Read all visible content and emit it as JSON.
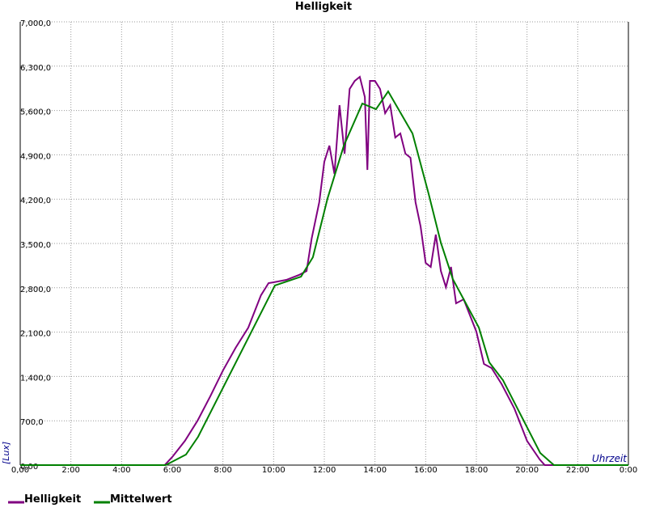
{
  "chart_data": {
    "type": "line",
    "title": "Helligkeit",
    "x_label": "Uhrzeit",
    "y_label": "[Lux]",
    "xlim": [
      0,
      24
    ],
    "ylim": [
      0,
      7000
    ],
    "xticks": [
      {
        "value": 0,
        "label": "0,00"
      },
      {
        "value": 2,
        "label": "2:00"
      },
      {
        "value": 4,
        "label": "4:00"
      },
      {
        "value": 6,
        "label": "6:00"
      },
      {
        "value": 8,
        "label": "8:00"
      },
      {
        "value": 10,
        "label": "10:00"
      },
      {
        "value": 12,
        "label": "12:00"
      },
      {
        "value": 14,
        "label": "14:00"
      },
      {
        "value": 16,
        "label": "16:00"
      },
      {
        "value": 18,
        "label": "18:00"
      },
      {
        "value": 20,
        "label": "20:00"
      },
      {
        "value": 22,
        "label": "22:00"
      },
      {
        "value": 24,
        "label": "0:00"
      }
    ],
    "yticks": [
      {
        "value": 0,
        "label": "0,00"
      },
      {
        "value": 700,
        "label": "700,0"
      },
      {
        "value": 1400,
        "label": "1,400,0"
      },
      {
        "value": 2100,
        "label": "2,100,0"
      },
      {
        "value": 2800,
        "label": "2,800,0"
      },
      {
        "value": 3500,
        "label": "3,500,0"
      },
      {
        "value": 4200,
        "label": "4,200,0"
      },
      {
        "value": 4900,
        "label": "4,900,0"
      },
      {
        "value": 5600,
        "label": "5,600,0"
      },
      {
        "value": 6300,
        "label": "6,300,0"
      },
      {
        "value": 7000,
        "label": "7,000,0"
      }
    ],
    "grid": true,
    "series": [
      {
        "name": "Helligkeit",
        "color": "#800080",
        "x": [
          0,
          5.7,
          6,
          6.5,
          7,
          7.5,
          8,
          8.5,
          9,
          9.5,
          9.8,
          10,
          10.5,
          11,
          11.3,
          11.5,
          11.8,
          12,
          12.2,
          12.4,
          12.6,
          12.8,
          13,
          13.2,
          13.4,
          13.6,
          13.7,
          13.8,
          14,
          14.2,
          14.4,
          14.6,
          14.8,
          15,
          15.2,
          15.4,
          15.6,
          15.8,
          16,
          16.2,
          16.4,
          16.6,
          16.8,
          17,
          17.2,
          17.5,
          18,
          18.3,
          18.6,
          19,
          19.5,
          20,
          20.5,
          20.7,
          24
        ],
        "values": [
          0,
          0,
          128,
          383,
          703,
          1086,
          1494,
          1852,
          2171,
          2682,
          2874,
          2887,
          2925,
          3002,
          3065,
          3576,
          4151,
          4790,
          5045,
          4598,
          5684,
          4918,
          5940,
          6067,
          6131,
          5812,
          4662,
          6067,
          6067,
          5940,
          5557,
          5684,
          5173,
          5237,
          4918,
          4854,
          4151,
          3768,
          3193,
          3129,
          3640,
          3065,
          2810,
          3129,
          2555,
          2618,
          2108,
          1597,
          1533,
          1277,
          894,
          383,
          89,
          0,
          0
        ]
      },
      {
        "name": "Mittelwert",
        "color": "#008000",
        "x": [
          0,
          5.74,
          6.54,
          7.02,
          10.05,
          11.08,
          11.55,
          12.13,
          12.77,
          13.5,
          14.04,
          14.52,
          15.48,
          16.12,
          16.6,
          17.07,
          18.1,
          18.51,
          19.05,
          20.52,
          21.06,
          24
        ],
        "values": [
          0,
          0,
          166,
          447,
          2836,
          2976,
          3283,
          4215,
          5045,
          5710,
          5620,
          5901,
          5237,
          4279,
          3512,
          2938,
          2171,
          1622,
          1341,
          192,
          0,
          0
        ]
      }
    ]
  }
}
